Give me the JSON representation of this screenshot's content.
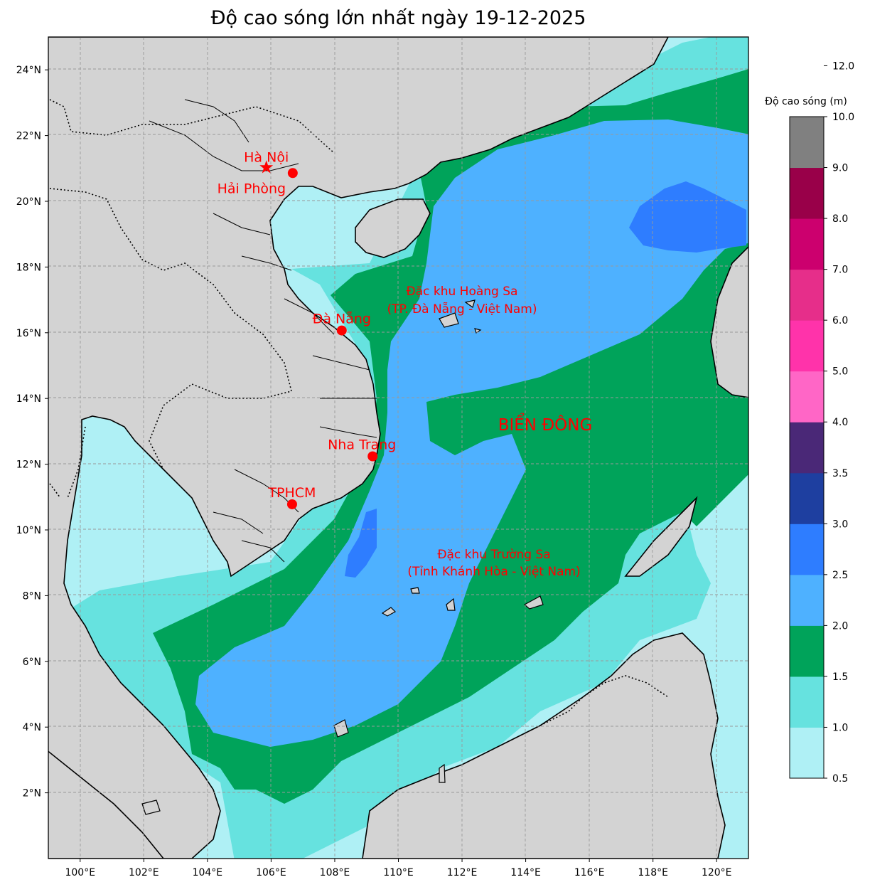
{
  "title": "Độ cao sóng lớn nhất ngày 19-12-2025",
  "map": {
    "lon_range": [
      99,
      121
    ],
    "lat_range": [
      0,
      25
    ],
    "lon_ticks": [
      "100°E",
      "102°E",
      "104°E",
      "106°E",
      "108°E",
      "110°E",
      "112°E",
      "114°E",
      "116°E",
      "118°E",
      "120°E"
    ],
    "lat_ticks": [
      "2°N",
      "4°N",
      "6°N",
      "8°N",
      "10°N",
      "12°N",
      "14°N",
      "16°N",
      "18°N",
      "20°N",
      "22°N",
      "24°N"
    ],
    "land_color": "#d3d3d3",
    "gridlines": "dashed"
  },
  "places": [
    {
      "name": "Hà Nội",
      "lon": 105.85,
      "lat": 21.03,
      "marker": "star"
    },
    {
      "name": "Hải Phòng",
      "lon": 106.68,
      "lat": 20.86,
      "marker": "circle"
    },
    {
      "name": "Đà Nẵng",
      "lon": 108.22,
      "lat": 16.07,
      "marker": "circle"
    },
    {
      "name": "Nha Trang",
      "lon": 109.19,
      "lat": 12.24,
      "marker": "circle"
    },
    {
      "name": "TPHCM",
      "lon": 106.66,
      "lat": 10.78,
      "marker": "circle"
    }
  ],
  "labels": {
    "hoang_sa_1": "Đặc khu Hoàng Sa",
    "hoang_sa_2": "(TP. Đà Nẵng - Việt Nam)",
    "truong_sa_1": "Đặc khu Trường Sa",
    "truong_sa_2": "(Tỉnh Khánh Hòa - Việt Nam)",
    "sea": "BIỂN ĐÔNG"
  },
  "colorbar": {
    "title": "Độ cao sóng (m)",
    "ticks": [
      "0.5",
      "1.0",
      "1.5",
      "2.0",
      "2.5",
      "3.0",
      "3.5",
      "4.0",
      "5.0",
      "6.0",
      "7.0",
      "8.0",
      "9.0",
      "10.0",
      "12.0"
    ],
    "colors": [
      "#aff0f5",
      "#66e2df",
      "#00a35a",
      "#4eb1ff",
      "#2e7dff",
      "#1e3fa0",
      "#4a2877",
      "#ff66c6",
      "#ff33aa",
      "#e62e8a",
      "#cc006e",
      "#990049",
      "#808080"
    ]
  }
}
